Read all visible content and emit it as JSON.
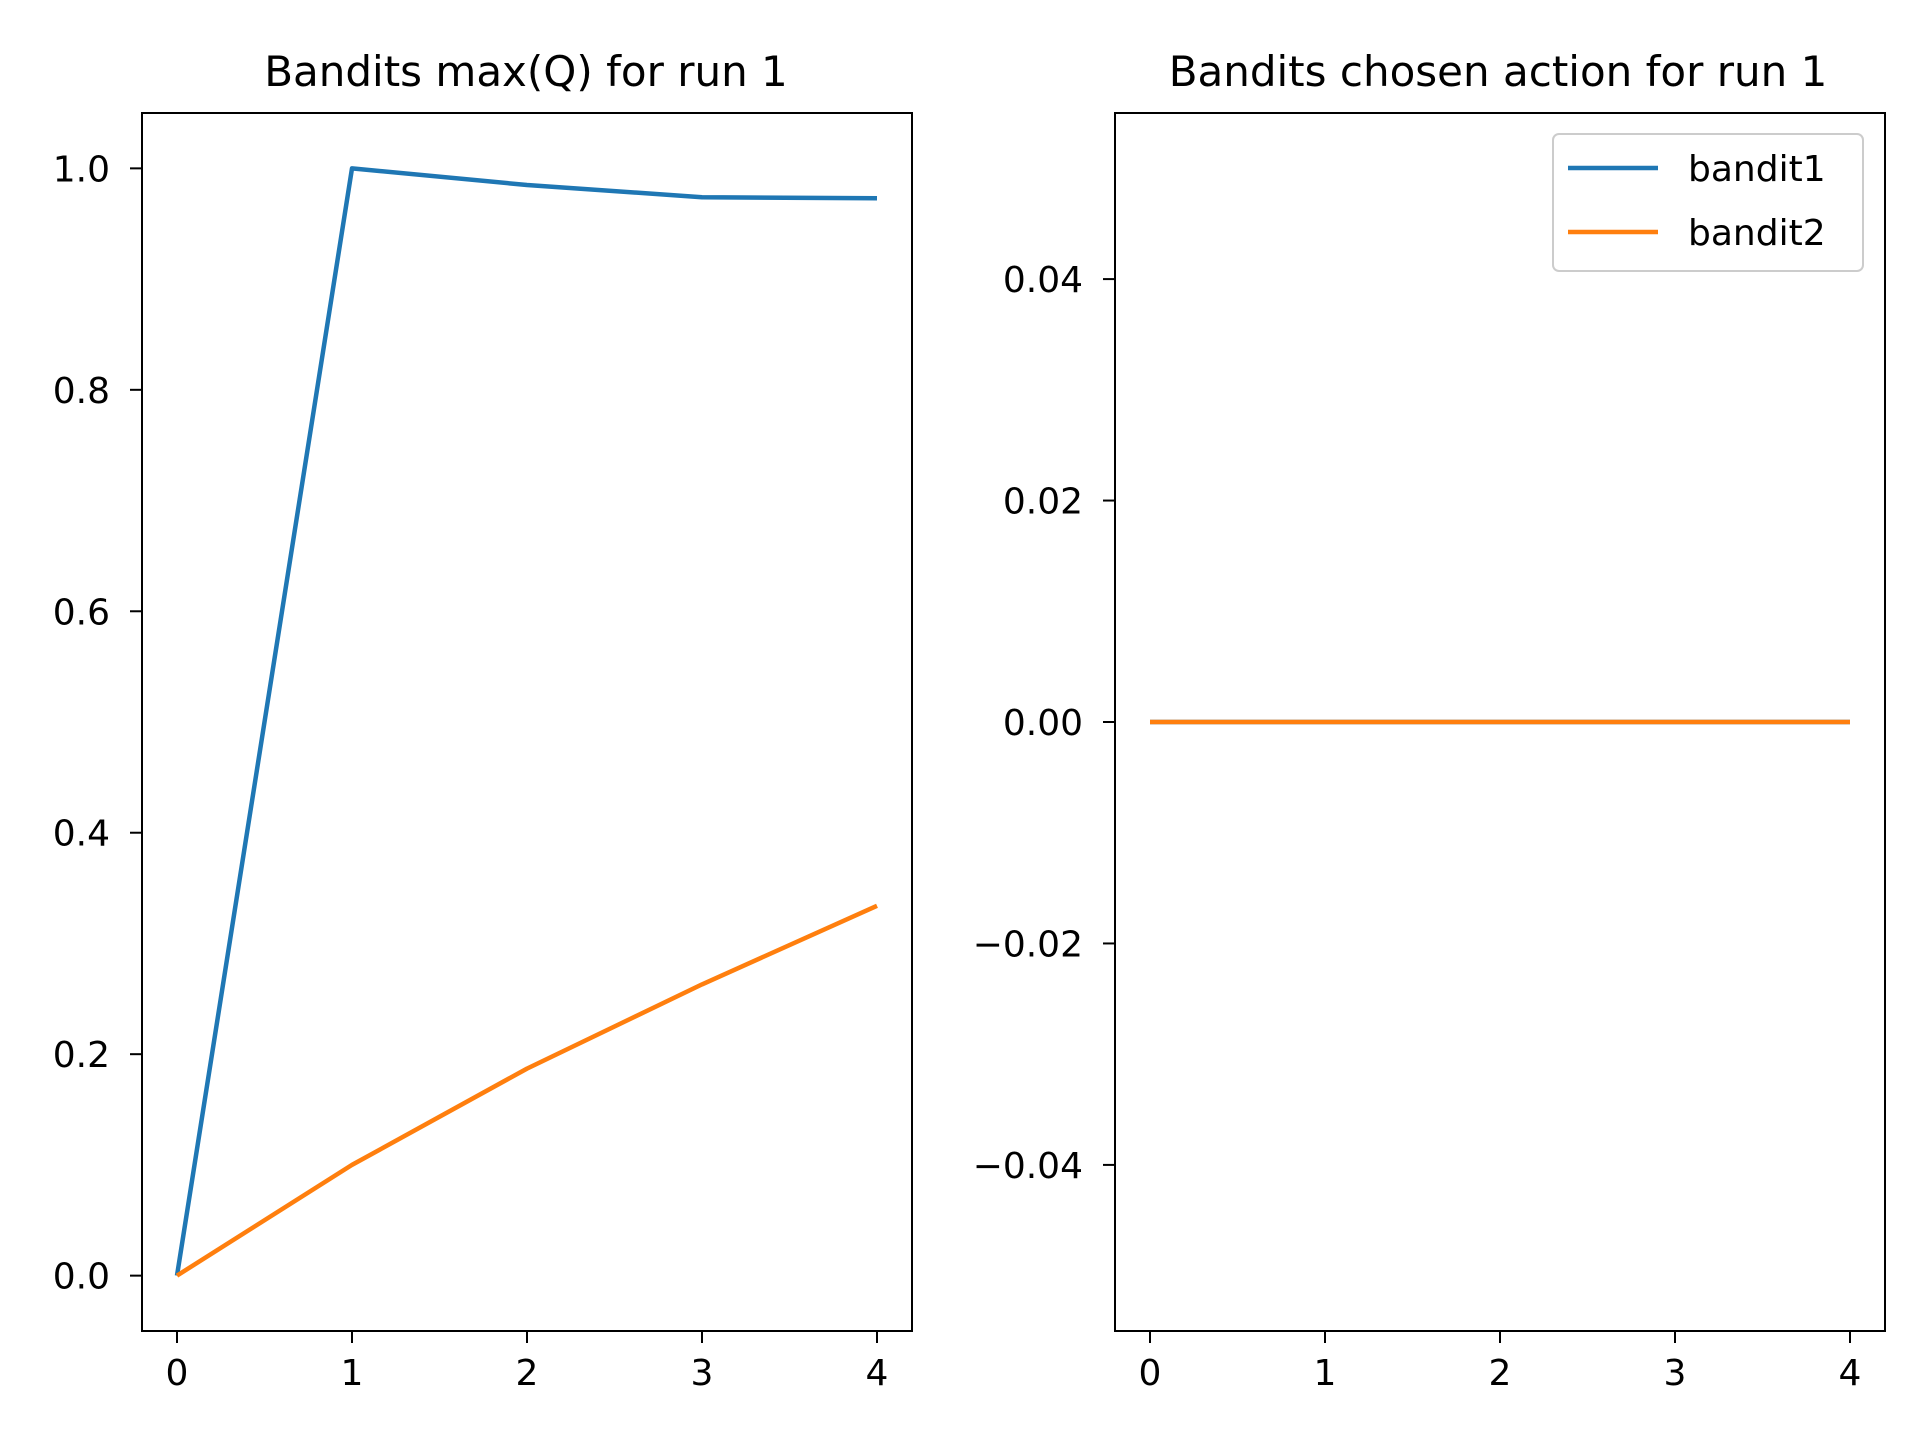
{
  "chart_data": [
    {
      "type": "line",
      "title": "Bandits max(Q) for run 1",
      "xlabel": "",
      "ylabel": "",
      "x": [
        0,
        1,
        2,
        3,
        4
      ],
      "xticks": [
        "0",
        "1",
        "2",
        "3",
        "4"
      ],
      "yticks": [
        "0.0",
        "0.2",
        "0.4",
        "0.6",
        "0.8",
        "1.0"
      ],
      "xlim": [
        -0.2,
        4.2
      ],
      "ylim": [
        -0.05,
        1.05
      ],
      "grid": false,
      "series": [
        {
          "name": "bandit1",
          "color": "#1f77b4",
          "values": [
            0.0,
            1.0,
            0.985,
            0.974,
            0.973
          ]
        },
        {
          "name": "bandit2",
          "color": "#ff7f0e",
          "values": [
            0.0,
            0.1,
            0.187,
            0.263,
            0.334
          ]
        }
      ]
    },
    {
      "type": "line",
      "title": "Bandits chosen action for run 1",
      "xlabel": "",
      "ylabel": "",
      "x": [
        0,
        1,
        2,
        3,
        4
      ],
      "xticks": [
        "0",
        "1",
        "2",
        "3",
        "4"
      ],
      "yticks": [
        "−0.04",
        "−0.02",
        "0.00",
        "0.02",
        "0.04"
      ],
      "xlim": [
        -0.2,
        4.2
      ],
      "ylim": [
        -0.055,
        0.055
      ],
      "grid": false,
      "legend": {
        "position": "upper-right",
        "entries": [
          "bandit1",
          "bandit2"
        ]
      },
      "series": [
        {
          "name": "bandit1",
          "color": "#1f77b4",
          "values": [
            0,
            0,
            0,
            0,
            0
          ]
        },
        {
          "name": "bandit2",
          "color": "#ff7f0e",
          "values": [
            0,
            0,
            0,
            0,
            0
          ]
        }
      ]
    }
  ]
}
